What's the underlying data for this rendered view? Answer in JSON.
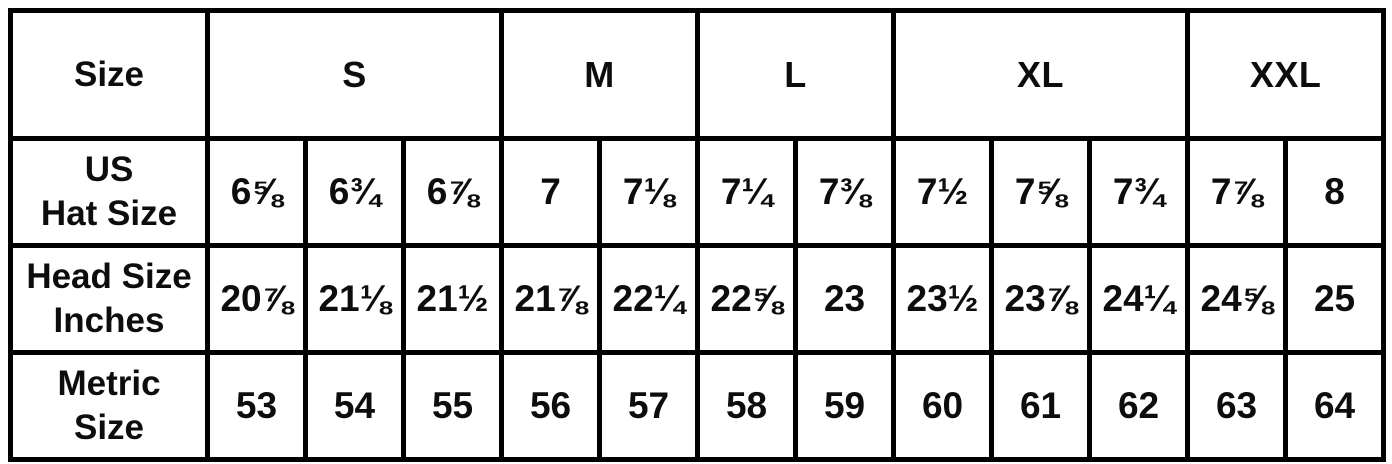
{
  "page": {
    "background_color": "#ffffff",
    "border_color": "#000000",
    "text_color": "#0d0d0d"
  },
  "chart_data": {
    "type": "table",
    "corner_label": "Size",
    "size_groups": [
      {
        "label": "S",
        "colspan": 3
      },
      {
        "label": "M",
        "colspan": 2
      },
      {
        "label": "L",
        "colspan": 2
      },
      {
        "label": "XL",
        "colspan": 3
      },
      {
        "label": "XXL",
        "colspan": 2
      }
    ],
    "rows": [
      {
        "label": "US\nHat Size",
        "values": [
          "6⅝",
          "6¾",
          "6⅞",
          "7",
          "7⅛",
          "7¼",
          "7⅜",
          "7½",
          "7⅝",
          "7¾",
          "7⅞",
          "8"
        ]
      },
      {
        "label": "Head Size\nInches",
        "values": [
          "20⅞",
          "21⅛",
          "21½",
          "21⅞",
          "22¼",
          "22⅝",
          "23",
          "23½",
          "23⅞",
          "24¼",
          "24⅝",
          "25"
        ]
      },
      {
        "label": "Metric\nSize",
        "values": [
          "53",
          "54",
          "55",
          "56",
          "57",
          "58",
          "59",
          "60",
          "61",
          "62",
          "63",
          "64"
        ]
      }
    ]
  }
}
